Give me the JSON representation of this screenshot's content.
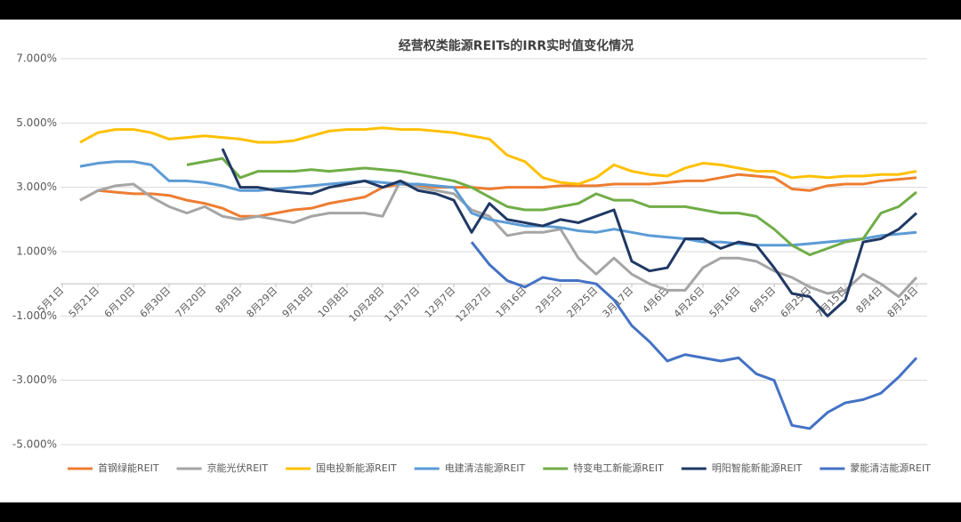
{
  "chart_data": {
    "type": "line",
    "title": "经营权类能源REITs的IRR实时值变化情况",
    "categories": [
      "5月1日",
      null,
      "5月21日",
      null,
      "6月10日",
      null,
      "6月30日",
      null,
      "7月20日",
      null,
      "8月9日",
      null,
      "8月29日",
      null,
      "9月18日",
      null,
      "10月8日",
      null,
      "10月28日",
      null,
      "11月17日",
      null,
      "12月7日",
      null,
      "12月27日",
      null,
      "1月16日",
      null,
      "2月5日",
      null,
      "2月25日",
      null,
      "3月17日",
      null,
      "4月6日",
      null,
      "4月26日",
      null,
      "5月16日",
      null,
      "6月5日",
      null,
      "6月25日",
      null,
      "7月15日",
      null,
      "8月4日",
      null,
      "8月24日"
    ],
    "ylim": [
      -5,
      7
    ],
    "yticks": [
      {
        "value": -5,
        "label": "-5.000%"
      },
      {
        "value": -3,
        "label": "-3.000%"
      },
      {
        "value": -1,
        "label": "-1.000%"
      },
      {
        "value": 1,
        "label": "1.000%"
      },
      {
        "value": 3,
        "label": "3.000%"
      },
      {
        "value": 5,
        "label": "5.000%"
      },
      {
        "value": 7,
        "label": "7.000%"
      }
    ],
    "grid": true,
    "legend": "bottom",
    "series": [
      {
        "name": "首钢绿能REIT",
        "color": "#ED7D31",
        "values": [
          null,
          2.6,
          2.9,
          2.85,
          2.8,
          2.8,
          2.75,
          2.6,
          2.5,
          2.35,
          2.1,
          2.1,
          2.2,
          2.3,
          2.35,
          2.5,
          2.6,
          2.7,
          3.0,
          3.1,
          3.05,
          3.0,
          3.0,
          3.0,
          2.95,
          3.0,
          3.0,
          3.0,
          3.05,
          3.05,
          3.05,
          3.1,
          3.1,
          3.1,
          3.15,
          3.2,
          3.2,
          3.3,
          3.4,
          3.35,
          3.3,
          2.95,
          2.9,
          3.05,
          3.1,
          3.1,
          3.2,
          3.25,
          3.3
        ]
      },
      {
        "name": "京能光伏REIT",
        "color": "#A5A5A5",
        "values": [
          null,
          2.6,
          2.9,
          3.05,
          3.1,
          2.7,
          2.4,
          2.2,
          2.4,
          2.1,
          2.0,
          2.1,
          2.0,
          1.9,
          2.1,
          2.2,
          2.2,
          2.2,
          2.1,
          3.2,
          3.0,
          2.9,
          2.8,
          2.3,
          2.1,
          1.5,
          1.6,
          1.6,
          1.7,
          0.8,
          0.3,
          0.8,
          0.3,
          0.0,
          -0.2,
          -0.2,
          0.5,
          0.8,
          0.8,
          0.7,
          0.4,
          0.2,
          -0.1,
          -0.3,
          -0.2,
          0.3,
          0.0,
          -0.4,
          0.2
        ]
      },
      {
        "name": "国电投新能源REIT",
        "color": "#FFC000",
        "values": [
          null,
          4.4,
          4.7,
          4.8,
          4.8,
          4.7,
          4.5,
          4.55,
          4.6,
          4.55,
          4.5,
          4.4,
          4.4,
          4.45,
          4.6,
          4.75,
          4.8,
          4.8,
          4.85,
          4.8,
          4.8,
          4.75,
          4.7,
          4.6,
          4.5,
          4.0,
          3.8,
          3.3,
          3.15,
          3.1,
          3.3,
          3.7,
          3.5,
          3.4,
          3.35,
          3.6,
          3.75,
          3.7,
          3.6,
          3.5,
          3.5,
          3.3,
          3.35,
          3.3,
          3.35,
          3.35,
          3.4,
          3.4,
          3.5
        ]
      },
      {
        "name": "电建清洁能源REIT",
        "color": "#5B9BD5",
        "values": [
          null,
          3.65,
          3.75,
          3.8,
          3.8,
          3.7,
          3.2,
          3.2,
          3.15,
          3.05,
          2.9,
          2.9,
          2.95,
          3.0,
          3.05,
          3.1,
          3.15,
          3.2,
          3.15,
          3.1,
          3.1,
          3.05,
          3.0,
          2.2,
          2.0,
          1.9,
          1.8,
          1.8,
          1.75,
          1.65,
          1.6,
          1.7,
          1.6,
          1.5,
          1.45,
          1.4,
          1.3,
          1.3,
          1.25,
          1.2,
          1.2,
          1.2,
          1.25,
          1.3,
          1.35,
          1.4,
          1.5,
          1.55,
          1.6
        ]
      },
      {
        "name": "特变电工新能源REIT",
        "color": "#70AD47",
        "values": [
          null,
          null,
          null,
          null,
          null,
          null,
          null,
          3.7,
          3.8,
          3.9,
          3.3,
          3.5,
          3.5,
          3.5,
          3.55,
          3.5,
          3.55,
          3.6,
          3.55,
          3.5,
          3.4,
          3.3,
          3.2,
          3.0,
          2.7,
          2.4,
          2.3,
          2.3,
          2.4,
          2.5,
          2.8,
          2.6,
          2.6,
          2.4,
          2.4,
          2.4,
          2.3,
          2.2,
          2.2,
          2.1,
          1.7,
          1.2,
          0.9,
          1.1,
          1.3,
          1.4,
          2.2,
          2.4,
          2.85
        ]
      },
      {
        "name": "明阳智能新能源REIT",
        "color": "#203864",
        "values": [
          null,
          null,
          null,
          null,
          null,
          null,
          null,
          null,
          null,
          4.2,
          3.0,
          3.0,
          2.9,
          2.85,
          2.8,
          3.0,
          3.1,
          3.2,
          3.0,
          3.2,
          2.9,
          2.8,
          2.6,
          1.6,
          2.5,
          2.0,
          1.9,
          1.8,
          2.0,
          1.9,
          2.1,
          2.3,
          0.7,
          0.4,
          0.5,
          1.4,
          1.4,
          1.1,
          1.3,
          1.2,
          0.5,
          -0.3,
          -0.4,
          -1.0,
          -0.5,
          1.3,
          1.4,
          1.7,
          2.2
        ]
      },
      {
        "name": "蒙能清洁能源REIT",
        "color": "#4472C4",
        "values": [
          null,
          null,
          null,
          null,
          null,
          null,
          null,
          null,
          null,
          null,
          null,
          null,
          null,
          null,
          null,
          null,
          null,
          null,
          null,
          null,
          null,
          null,
          null,
          1.3,
          0.6,
          0.1,
          -0.1,
          0.2,
          0.1,
          0.1,
          0.0,
          -0.5,
          -1.3,
          -1.8,
          -2.4,
          -2.2,
          -2.3,
          -2.4,
          -2.3,
          -2.8,
          -3.0,
          -4.4,
          -4.5,
          -4.0,
          -3.7,
          -3.6,
          -3.4,
          -2.9,
          -2.3
        ]
      }
    ]
  }
}
